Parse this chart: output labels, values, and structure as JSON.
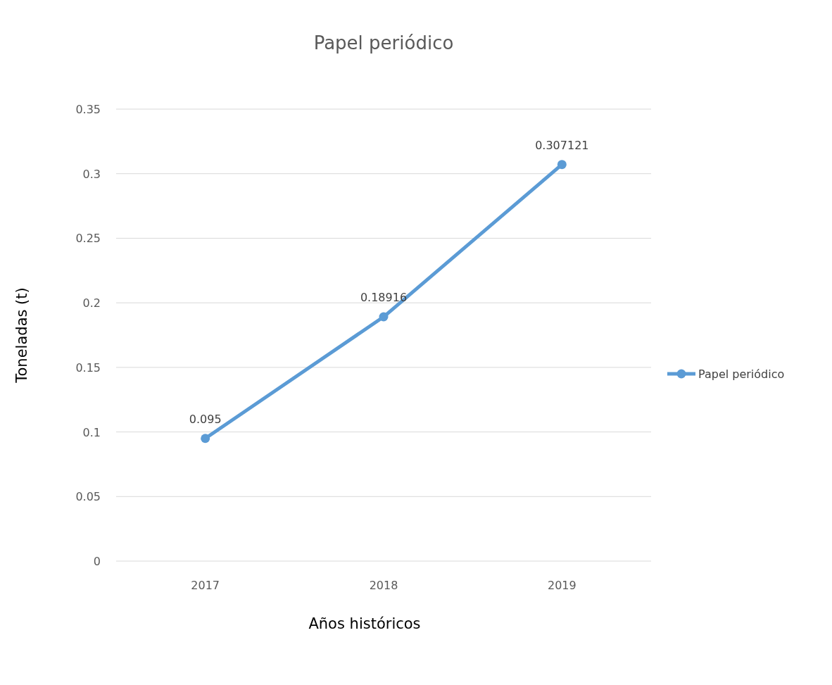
{
  "chart_data": {
    "type": "line",
    "title": "Papel periódico",
    "xlabel": "Años históricos",
    "ylabel": "Toneladas (t)",
    "categories": [
      "2017",
      "2018",
      "2019"
    ],
    "series": [
      {
        "name": "Papel periódico",
        "color": "#5b9bd5",
        "values": [
          0.095,
          0.18916,
          0.307121
        ]
      }
    ],
    "ylim": [
      0,
      0.35
    ],
    "yticks": [
      0,
      {
        "value": 0.05,
        "label": "0.05"
      },
      {
        "value": 0.1,
        "label": "0.1"
      },
      {
        "value": 0.15,
        "label": "0.15"
      },
      {
        "value": 0.2,
        "label": "0.2"
      },
      {
        "value": 0.25,
        "label": "0.25"
      },
      {
        "value": 0.3,
        "label": "0.3"
      },
      {
        "value": 0.35,
        "label": "0.35"
      }
    ],
    "grid": "y",
    "legend": "right",
    "marker": "circle",
    "line_style": "solid",
    "data_labels": true
  }
}
